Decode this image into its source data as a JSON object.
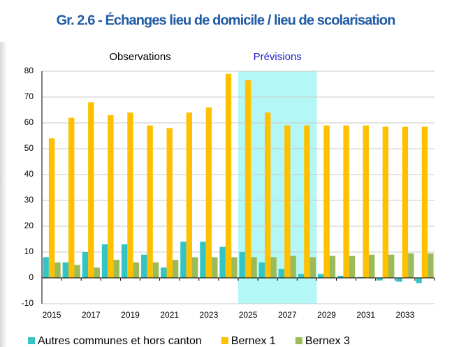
{
  "chart_data": {
    "type": "bar",
    "title": "Gr. 2.6 - Échanges lieu de domicile / lieu de scolarisation",
    "annotations": [
      "Observations",
      "Prévisions"
    ],
    "shaded_categories": [
      10,
      13
    ],
    "shade_color": "#b3f7f7",
    "categories": [
      "2015",
      null,
      "2017",
      null,
      "2019",
      null,
      "2021",
      null,
      "2023",
      null,
      "2025",
      null,
      "2027",
      null,
      "2029",
      null,
      "2031",
      null,
      "2033",
      null
    ],
    "series": [
      {
        "name": "Autres communes et hors canton",
        "color": "#33c5c5",
        "values": [
          8,
          6,
          10,
          13,
          13,
          9,
          4,
          14,
          14,
          12,
          10,
          6,
          3.5,
          1.5,
          1.5,
          0.8,
          0.3,
          -1,
          -1.5,
          -2
        ]
      },
      {
        "name": "Bernex 1",
        "color": "#ffc000",
        "values": [
          54,
          62,
          68,
          63,
          64,
          59,
          58,
          64,
          66,
          79,
          76.5,
          64,
          59,
          59,
          59,
          59,
          59,
          58.5,
          58.5,
          58.5
        ]
      },
      {
        "name": "Bernex 3",
        "color": "#9bbb59",
        "values": [
          6,
          5,
          4,
          7,
          6,
          6,
          7,
          8,
          8,
          8,
          8,
          8,
          8.5,
          8,
          8.5,
          8.5,
          9,
          9,
          9.5,
          9.5
        ]
      }
    ],
    "ylim": [
      -10,
      80
    ],
    "yticks": [
      -10,
      0,
      10,
      20,
      30,
      40,
      50,
      60,
      70,
      80
    ],
    "grid": true
  }
}
